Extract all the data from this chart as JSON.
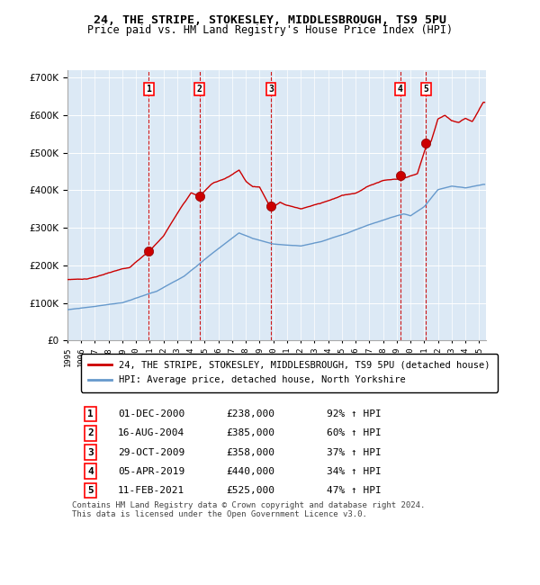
{
  "title1": "24, THE STRIPE, STOKESLEY, MIDDLESBROUGH, TS9 5PU",
  "title2": "Price paid vs. HM Land Registry's House Price Index (HPI)",
  "legend1": "24, THE STRIPE, STOKESLEY, MIDDLESBROUGH, TS9 5PU (detached house)",
  "legend2": "HPI: Average price, detached house, North Yorkshire",
  "footer1": "Contains HM Land Registry data © Crown copyright and database right 2024.",
  "footer2": "This data is licensed under the Open Government Licence v3.0.",
  "sales": [
    {
      "num": 1,
      "date": "01-DEC-2000",
      "year": 2000.92,
      "price": 238000
    },
    {
      "num": 2,
      "date": "16-AUG-2004",
      "year": 2004.62,
      "price": 385000
    },
    {
      "num": 3,
      "date": "29-OCT-2009",
      "year": 2009.83,
      "price": 358000
    },
    {
      "num": 4,
      "date": "05-APR-2019",
      "year": 2019.26,
      "price": 440000
    },
    {
      "num": 5,
      "date": "11-FEB-2021",
      "year": 2021.12,
      "price": 525000
    }
  ],
  "sale_pct": [
    "92%",
    "60%",
    "37%",
    "34%",
    "47%"
  ],
  "red_line_color": "#cc0000",
  "blue_line_color": "#6699cc",
  "dot_color": "#cc0000",
  "dashed_line_color": "#cc0000",
  "bg_color": "#dce9f5",
  "grid_color": "#ffffff",
  "ylim": [
    0,
    720000
  ],
  "yticks": [
    0,
    100000,
    200000,
    300000,
    400000,
    500000,
    600000,
    700000
  ],
  "xlim_start": 1995.0,
  "xlim_end": 2025.5
}
